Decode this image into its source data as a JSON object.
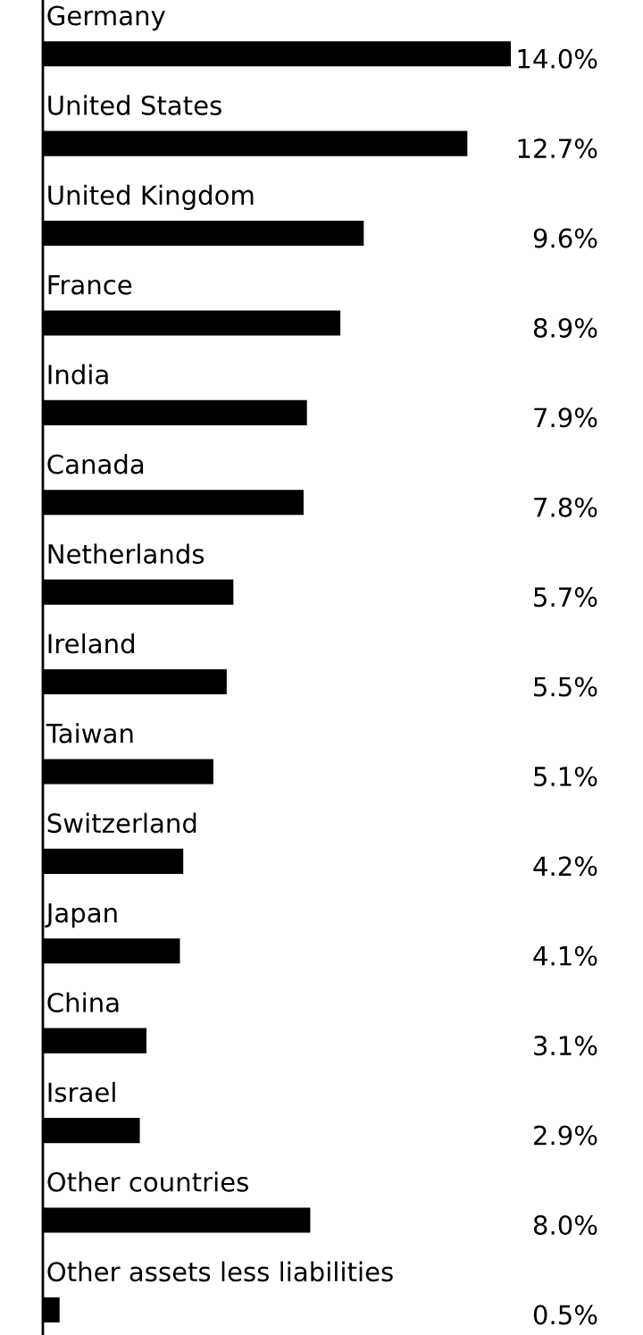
{
  "chart_data": {
    "type": "bar",
    "orientation": "horizontal",
    "categories": [
      "Germany",
      "United States",
      "United Kingdom",
      "France",
      "India",
      "Canada",
      "Netherlands",
      "Ireland",
      "Taiwan",
      "Switzerland",
      "Japan",
      "China",
      "Israel",
      "Other countries",
      "Other assets less liabilities"
    ],
    "values": [
      14.0,
      12.7,
      9.6,
      8.9,
      7.9,
      7.8,
      5.7,
      5.5,
      5.1,
      4.2,
      4.1,
      3.1,
      2.9,
      8.0,
      0.5
    ],
    "value_labels": [
      "14.0%",
      "12.7%",
      "9.6%",
      "8.9%",
      "7.9%",
      "7.8%",
      "5.7%",
      "5.5%",
      "5.1%",
      "4.2%",
      "4.1%",
      "3.1%",
      "2.9%",
      "8.0%",
      "0.5%"
    ],
    "color": "#000000",
    "tick_labels": false
  }
}
